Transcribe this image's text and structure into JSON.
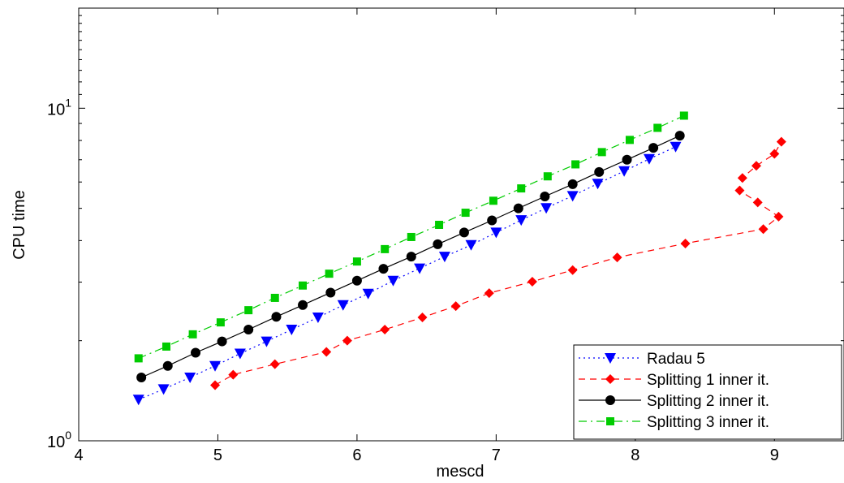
{
  "chart_data": {
    "type": "line",
    "xlabel": "mescd",
    "ylabel": "CPU time",
    "xlim": [
      4,
      9.5
    ],
    "ylim": [
      1,
      20
    ],
    "y_scale": "log",
    "x_ticks": [
      "4",
      "5",
      "6",
      "7",
      "8",
      "9"
    ],
    "y_ticks": [
      {
        "value": 1,
        "base": "10",
        "exp": "0"
      },
      {
        "value": 10,
        "base": "10",
        "exp": "1"
      }
    ],
    "grid": false,
    "legend_position": "bottom-right",
    "series": [
      {
        "name": "Radau 5",
        "color": "#0000ff",
        "line_style": "dotted",
        "marker": "triangle-down",
        "points": [
          [
            4.43,
            1.33
          ],
          [
            4.61,
            1.43
          ],
          [
            4.8,
            1.55
          ],
          [
            4.98,
            1.68
          ],
          [
            5.16,
            1.83
          ],
          [
            5.35,
            1.99
          ],
          [
            5.53,
            2.16
          ],
          [
            5.72,
            2.35
          ],
          [
            5.9,
            2.56
          ],
          [
            6.08,
            2.77
          ],
          [
            6.26,
            3.03
          ],
          [
            6.45,
            3.3
          ],
          [
            6.63,
            3.58
          ],
          [
            6.82,
            3.88
          ],
          [
            7.0,
            4.23
          ],
          [
            7.18,
            4.61
          ],
          [
            7.36,
            5.01
          ],
          [
            7.55,
            5.45
          ],
          [
            7.73,
            5.93
          ],
          [
            7.92,
            6.47
          ],
          [
            8.1,
            7.04
          ],
          [
            8.29,
            7.66
          ]
        ]
      },
      {
        "name": "Splitting 1 inner it.",
        "color": "#ff0000",
        "line_style": "dashed",
        "marker": "diamond",
        "points": [
          [
            4.98,
            1.47
          ],
          [
            5.11,
            1.58
          ],
          [
            5.41,
            1.7
          ],
          [
            5.78,
            1.85
          ],
          [
            5.93,
            2.0
          ],
          [
            6.2,
            2.16
          ],
          [
            6.47,
            2.35
          ],
          [
            6.71,
            2.54
          ],
          [
            6.95,
            2.78
          ],
          [
            7.26,
            3.01
          ],
          [
            7.55,
            3.26
          ],
          [
            7.87,
            3.56
          ],
          [
            8.36,
            3.92
          ],
          [
            8.92,
            4.33
          ],
          [
            9.03,
            4.72
          ],
          [
            8.88,
            5.21
          ],
          [
            8.75,
            5.66
          ],
          [
            8.77,
            6.17
          ],
          [
            8.87,
            6.71
          ],
          [
            9.0,
            7.29
          ],
          [
            9.05,
            7.93
          ]
        ]
      },
      {
        "name": "Splitting 2 inner it.",
        "color": "#000000",
        "line_style": "solid",
        "marker": "circle",
        "points": [
          [
            4.45,
            1.55
          ],
          [
            4.64,
            1.68
          ],
          [
            4.84,
            1.84
          ],
          [
            5.03,
            1.99
          ],
          [
            5.22,
            2.16
          ],
          [
            5.42,
            2.36
          ],
          [
            5.61,
            2.56
          ],
          [
            5.81,
            2.79
          ],
          [
            6.0,
            3.03
          ],
          [
            6.19,
            3.29
          ],
          [
            6.39,
            3.58
          ],
          [
            6.58,
            3.9
          ],
          [
            6.77,
            4.23
          ],
          [
            6.97,
            4.6
          ],
          [
            7.16,
            5.0
          ],
          [
            7.35,
            5.43
          ],
          [
            7.55,
            5.91
          ],
          [
            7.74,
            6.43
          ],
          [
            7.94,
            7.0
          ],
          [
            8.13,
            7.6
          ],
          [
            8.32,
            8.27
          ]
        ]
      },
      {
        "name": "Splitting 3 inner it.",
        "color": "#00cc00",
        "line_style": "dash-dot",
        "marker": "square",
        "points": [
          [
            4.43,
            1.77
          ],
          [
            4.63,
            1.92
          ],
          [
            4.82,
            2.09
          ],
          [
            5.02,
            2.27
          ],
          [
            5.22,
            2.47
          ],
          [
            5.41,
            2.69
          ],
          [
            5.61,
            2.93
          ],
          [
            5.8,
            3.18
          ],
          [
            6.0,
            3.46
          ],
          [
            6.2,
            3.77
          ],
          [
            6.39,
            4.1
          ],
          [
            6.59,
            4.46
          ],
          [
            6.78,
            4.85
          ],
          [
            6.98,
            5.27
          ],
          [
            7.18,
            5.74
          ],
          [
            7.37,
            6.24
          ],
          [
            7.57,
            6.78
          ],
          [
            7.76,
            7.38
          ],
          [
            7.96,
            8.03
          ],
          [
            8.16,
            8.73
          ],
          [
            8.35,
            9.5
          ]
        ]
      }
    ]
  }
}
